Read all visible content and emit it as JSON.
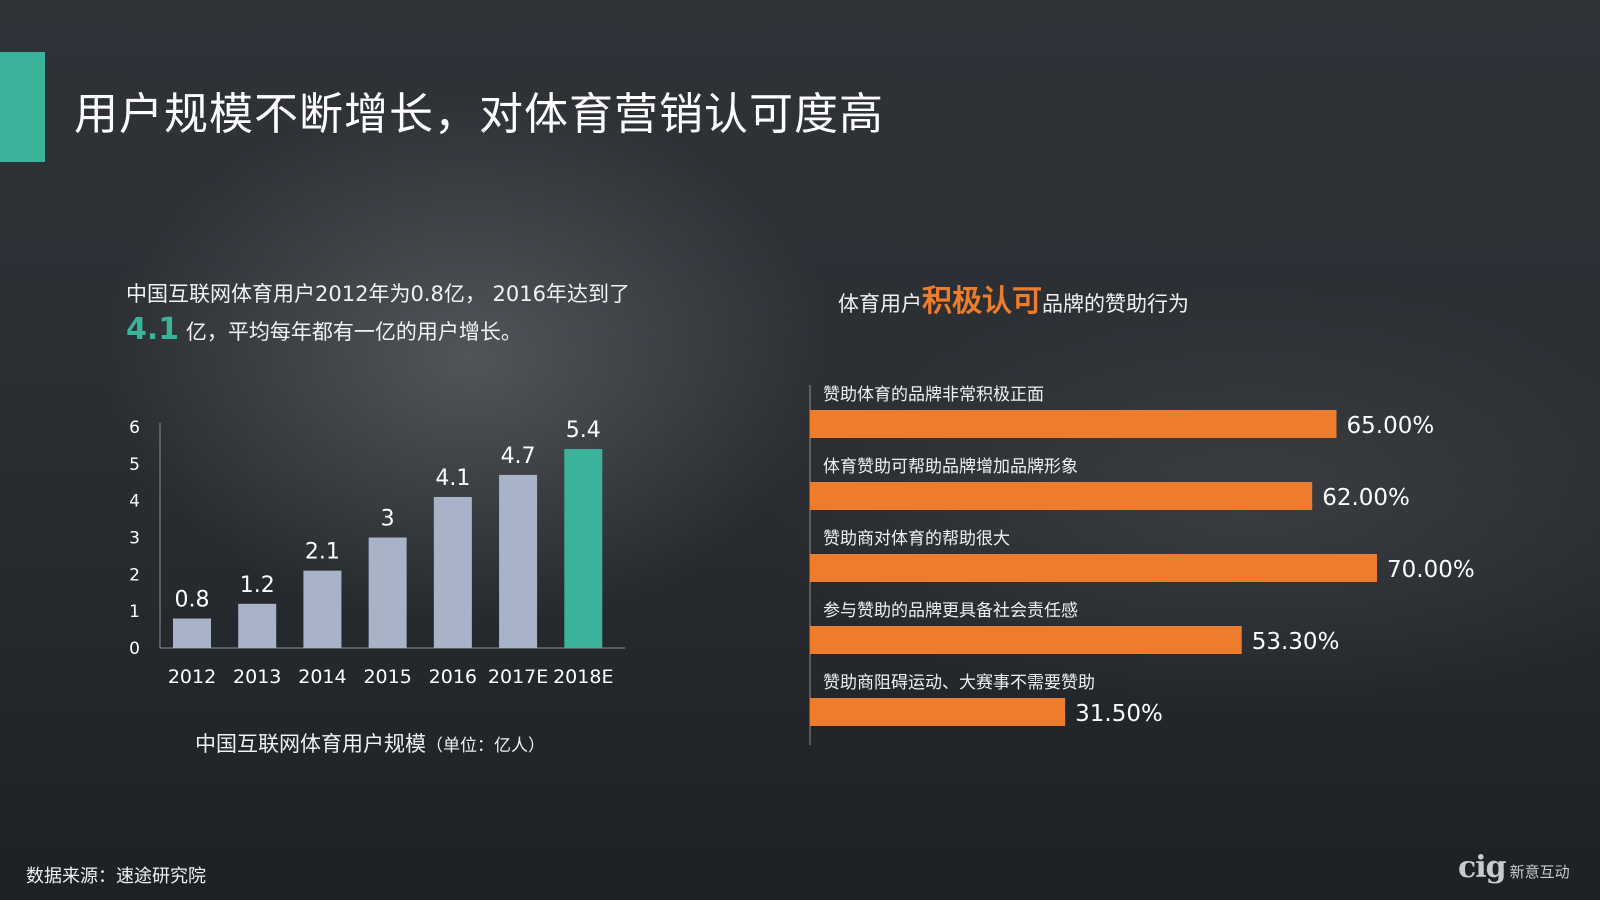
{
  "header": {
    "title": "用户规模不断增长，对体育营销认可度高"
  },
  "intro": {
    "text_before": "中国互联网体育用户2012年为0.8亿， 2016年达到了",
    "highlight": "4.1",
    "text_after": "亿，平均每年都有一亿的用户增长。"
  },
  "left_chart_caption": {
    "main": "中国互联网体育用户规模",
    "unit": "（单位：亿人）"
  },
  "right_chart_title": {
    "before": "体育用户",
    "highlight": "积极认可",
    "after": "品牌的赞助行为"
  },
  "source": "数据来源：速途研究院",
  "logo": {
    "mark": "cig",
    "name": "新意互动"
  },
  "colors": {
    "accent_green": "#3bb39b",
    "accent_orange": "#ee7c2d",
    "bar_gray": "#a9b3c7"
  },
  "chart_data": [
    {
      "type": "bar",
      "categories": [
        "2012",
        "2013",
        "2014",
        "2015",
        "2016",
        "2017E",
        "2018E"
      ],
      "values": [
        0.8,
        1.2,
        2.1,
        3,
        4.1,
        4.7,
        5.4
      ],
      "value_labels": [
        "0.8",
        "1.2",
        "2.1",
        "3",
        "4.1",
        "4.7",
        "5.4"
      ],
      "yticks": [
        "0",
        "1",
        "2",
        "3",
        "4",
        "5",
        "6"
      ],
      "ylim": [
        0,
        6
      ],
      "highlight_index": 6,
      "grid": false
    },
    {
      "type": "bar",
      "orientation": "horizontal",
      "categories": [
        "赞助体育的品牌非常积极正面",
        "体育赞助可帮助品牌增加品牌形象",
        "赞助商对体育的帮助很大",
        "参与赞助的品牌更具备社会责任感",
        "赞助商阻碍运动、大赛事不需要赞助"
      ],
      "values": [
        65.0,
        62.0,
        70.0,
        53.3,
        31.5
      ],
      "value_labels": [
        "65.00%",
        "62.00%",
        "70.00%",
        "53.30%",
        "31.50%"
      ],
      "xlim": [
        0,
        100
      ],
      "grid": false
    }
  ]
}
